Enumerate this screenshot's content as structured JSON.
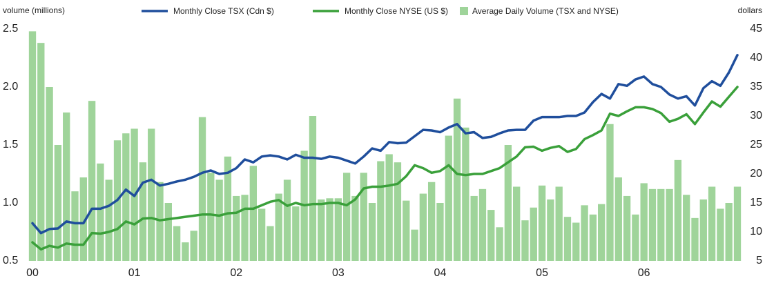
{
  "chart_data": {
    "type": "combo",
    "y_label": "volume (millions)",
    "y2_label": "dollars",
    "categories": [
      "00",
      null,
      null,
      null,
      null,
      null,
      null,
      null,
      null,
      null,
      null,
      null,
      "01",
      null,
      null,
      null,
      null,
      null,
      null,
      null,
      null,
      null,
      null,
      null,
      "02",
      null,
      null,
      null,
      null,
      null,
      null,
      null,
      null,
      null,
      null,
      null,
      "03",
      null,
      null,
      null,
      null,
      null,
      null,
      null,
      null,
      null,
      null,
      null,
      "04",
      null,
      null,
      null,
      null,
      null,
      null,
      null,
      null,
      null,
      null,
      null,
      "05",
      null,
      null,
      null,
      null,
      null,
      null,
      null,
      null,
      null,
      null,
      null,
      "06",
      null,
      null,
      null,
      null,
      null,
      null,
      null,
      null,
      null,
      null,
      null
    ],
    "ylim": [
      0.5,
      2.5
    ],
    "yticks": [
      0.5,
      {
        "value": 1.0,
        "label": "1.0"
      },
      1.5,
      {
        "value": 2.0,
        "label": "2.0"
      },
      2.5
    ],
    "y2lim": [
      5,
      45
    ],
    "y2ticks": [
      5,
      10,
      15,
      20,
      25,
      30,
      35,
      40,
      45
    ],
    "series": [
      {
        "name": "Monthly Close TSX (Cdn $)",
        "type": "line",
        "axis": "y2",
        "color": "#1f4e9c",
        "values": [
          11.5,
          9.8,
          10.5,
          10.6,
          11.8,
          11.5,
          11.5,
          14,
          14,
          14.5,
          15.5,
          17.3,
          16.2,
          18.5,
          19,
          18,
          18.3,
          18.7,
          19,
          19.5,
          20.2,
          20.6,
          20,
          20.2,
          21,
          22.5,
          22,
          23,
          23.2,
          23,
          22.5,
          23.3,
          22.8,
          22.8,
          22.6,
          23,
          22.8,
          22.3,
          21.8,
          23,
          24.4,
          24,
          25.5,
          25.3,
          25.4,
          26.5,
          27.6,
          27.5,
          27.2,
          28,
          28.6,
          27,
          27.2,
          26.2,
          26.4,
          27,
          27.5,
          27.6,
          27.6,
          29.2,
          29.8,
          29.8,
          29.8,
          30,
          30,
          30.6,
          32.4,
          33.8,
          33,
          35.5,
          35.2,
          36.3,
          36.8,
          35.5,
          35,
          33.7,
          33,
          33.4,
          31.8,
          34.8,
          36,
          35.2,
          37.5,
          40.5
        ]
      },
      {
        "name": "Monthly Close NYSE (US $)",
        "type": "line",
        "axis": "y2",
        "color": "#3aa03a",
        "values": [
          8.2,
          7,
          7.6,
          7.3,
          8,
          7.8,
          7.8,
          9.8,
          9.7,
          10,
          10.5,
          11.8,
          11.3,
          12.3,
          12.4,
          12,
          12.2,
          12.4,
          12.6,
          12.8,
          13,
          13,
          12.8,
          13.2,
          13.3,
          14,
          14,
          14.6,
          15.2,
          15.5,
          14.5,
          15,
          14.6,
          14.8,
          14.8,
          15,
          15,
          14.6,
          15.6,
          17.5,
          17.8,
          17.8,
          18,
          18.3,
          19.6,
          21.5,
          21,
          20.2,
          20.5,
          21.5,
          20,
          19.8,
          20,
          20,
          20.5,
          21,
          22,
          23,
          24.6,
          24.7,
          24,
          24.5,
          24.8,
          23.8,
          24.3,
          26,
          26.7,
          27.5,
          30.4,
          30,
          30.8,
          31.5,
          31.5,
          31.2,
          30.5,
          29,
          29.5,
          30.3,
          28.6,
          30.6,
          32.5,
          31.6,
          33.3,
          35
        ]
      },
      {
        "name": "Average Daily Volume (TSX and NYSE)",
        "type": "bar",
        "axis": "y",
        "color": "#9fd49a",
        "values": [
          2.48,
          2.38,
          2.0,
          1.5,
          1.78,
          1.1,
          1.22,
          1.88,
          1.34,
          1.2,
          1.54,
          1.6,
          1.64,
          1.35,
          1.64,
          1.18,
          1.0,
          0.8,
          0.66,
          0.76,
          1.74,
          1.26,
          1.2,
          1.4,
          1.06,
          1.07,
          1.32,
          0.95,
          0.8,
          1.08,
          1.2,
          0.97,
          1.45,
          1.75,
          1.03,
          1.04,
          1.04,
          1.26,
          1.06,
          1.26,
          1.0,
          1.36,
          1.42,
          1.35,
          1.02,
          0.77,
          1.08,
          1.18,
          1.0,
          1.58,
          1.9,
          1.65,
          1.06,
          1.12,
          0.94,
          0.79,
          1.5,
          1.14,
          0.85,
          0.96,
          1.15,
          1.03,
          1.14,
          0.88,
          0.83,
          0.98,
          0.9,
          0.99,
          1.68,
          1.22,
          1.06,
          0.9,
          1.17,
          1.12,
          1.12,
          1.12,
          1.37,
          1.07,
          0.87,
          1.03,
          1.14,
          0.95,
          1.0,
          1.14
        ]
      }
    ]
  }
}
